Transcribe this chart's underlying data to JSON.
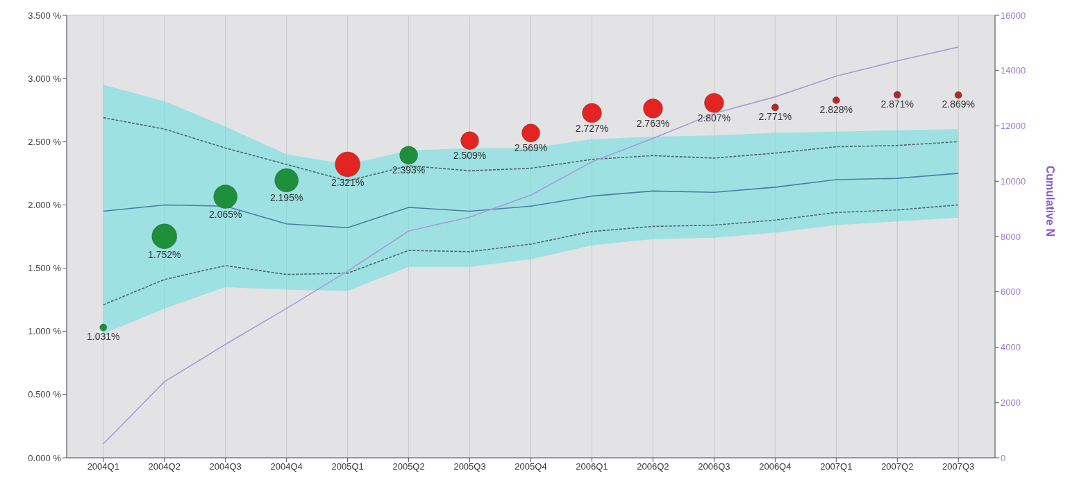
{
  "chart_data": {
    "type": "line",
    "y2label": "Cumulative N",
    "categories": [
      "2004Q1",
      "2004Q2",
      "2004Q3",
      "2004Q4",
      "2005Q1",
      "2005Q2",
      "2005Q3",
      "2005Q4",
      "2006Q1",
      "2006Q2",
      "2006Q3",
      "2006Q4",
      "2007Q1",
      "2007Q2",
      "2007Q3"
    ],
    "series": [
      {
        "color": "#4a7f9e",
        "line_style": "solid",
        "values": [
          1.95,
          2.0,
          1.99,
          1.85,
          1.82,
          1.98,
          1.95,
          1.99,
          2.07,
          2.11,
          2.1,
          2.14,
          2.2,
          2.21,
          2.25
        ],
        "lower": [
          0.98,
          1.18,
          1.35,
          1.33,
          1.32,
          1.51,
          1.51,
          1.57,
          1.68,
          1.73,
          1.74,
          1.78,
          1.84,
          1.87,
          1.9
        ],
        "upper": [
          2.95,
          2.82,
          2.62,
          2.4,
          2.32,
          2.43,
          2.45,
          2.45,
          2.52,
          2.54,
          2.55,
          2.57,
          2.58,
          2.59,
          2.6
        ]
      },
      {
        "color": "#4f6572",
        "line_style": "dashed",
        "values": [
          2.69,
          2.6,
          2.45,
          null,
          2.19,
          2.31,
          2.27,
          2.29,
          2.36,
          2.39,
          2.37,
          2.41,
          2.46,
          2.47,
          2.5
        ]
      },
      {
        "color": "#4f6572",
        "line_style": "dashed",
        "values": [
          1.21,
          1.41,
          1.52,
          1.45,
          1.46,
          1.64,
          1.63,
          1.69,
          1.79,
          1.83,
          1.84,
          1.88,
          1.94,
          1.96,
          2.0
        ]
      },
      {
        "axis": "y2",
        "color": "#a99bd8",
        "line_style": "solid",
        "values": [
          500,
          2750,
          4100,
          5400,
          6750,
          8200,
          8700,
          9500,
          10700,
          11550,
          12450,
          13050,
          13800,
          14350,
          14850
        ]
      },
      {
        "type": "bubble",
        "values": [
          1.031,
          1.752,
          2.065,
          2.195,
          2.321,
          2.393,
          2.509,
          2.569,
          2.727,
          2.763,
          2.807,
          2.771,
          2.828,
          2.871,
          2.869
        ],
        "sizes": [
          0.08,
          1,
          0.89,
          0.89,
          1,
          0.52,
          0.52,
          0.52,
          0.6,
          0.6,
          0.6,
          0.08,
          0.08,
          0.08,
          0.08
        ],
        "colors": [
          "#1e8f3a",
          "#1e8f3a",
          "#1e8f3a",
          "#1e8f3a",
          "#e42420",
          "#1e8f3a",
          "#e42420",
          "#e42420",
          "#e42420",
          "#e42420",
          "#e42420",
          "#b02a2a",
          "#b02a2a",
          "#b02a2a",
          "#b02a2a"
        ],
        "value_labels": [
          "1.031%",
          "1.752%",
          "2.065%",
          "2.195%",
          "2.321%",
          "2.393%",
          "2.509%",
          "2.569%",
          "2.727%",
          "2.763%",
          "2.807%",
          "2.771%",
          "2.828%",
          "2.871%",
          "2.869%"
        ]
      }
    ],
    "ylim": [
      0,
      3.5
    ],
    "yticks": [
      {
        "value": 0,
        "label": "0.000 %"
      },
      {
        "value": 0.5,
        "label": "0.500 %"
      },
      {
        "value": 1,
        "label": "1.000 %"
      },
      {
        "value": 1.5,
        "label": "1.500 %"
      },
      {
        "value": 2,
        "label": "2.000 %"
      },
      {
        "value": 2.5,
        "label": "2.500 %"
      },
      {
        "value": 3,
        "label": "3.000 %"
      },
      {
        "value": 3.5,
        "label": "3.500 %"
      }
    ],
    "y2lim": [
      0,
      16000
    ],
    "y2ticks": [
      0,
      2000,
      4000,
      6000,
      8000,
      10000,
      12000,
      14000,
      16000
    ],
    "grid": true
  }
}
